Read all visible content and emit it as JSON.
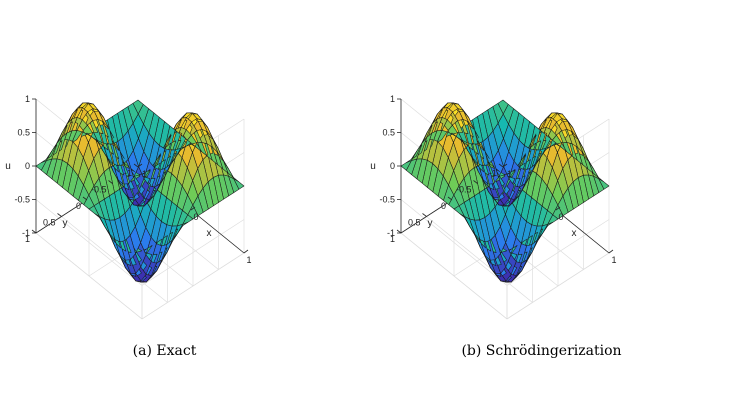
{
  "chart_data": [
    {
      "type": "surface",
      "caption": "(a) Exact",
      "xlabel": "x",
      "ylabel": "y",
      "zlabel": "u",
      "xlim": [
        -1,
        1
      ],
      "ylim": [
        -1,
        1
      ],
      "zlim": [
        -1,
        1
      ],
      "xticks": [
        "-1",
        "0",
        "1"
      ],
      "yticks": [
        "-1",
        "-0.5",
        "0",
        "0.5",
        "1"
      ],
      "zticks": [
        "-1",
        "-0.5",
        "0",
        "0.5",
        "1"
      ],
      "grid": true,
      "colormap": [
        "#3e26a8",
        "#2a80ef",
        "#16b8b0",
        "#6fcc57",
        "#e6b92f",
        "#fde725"
      ],
      "surface": {
        "function": "u(x,y) = -sin(pi*x)*sin(pi*y)",
        "x": [
          -1,
          -0.9,
          -0.8,
          -0.7,
          -0.6,
          -0.5,
          -0.4,
          -0.3,
          -0.2,
          -0.1,
          0,
          0.1,
          0.2,
          0.3,
          0.4,
          0.5,
          0.6,
          0.7,
          0.8,
          0.9,
          1
        ],
        "y": [
          -1,
          -0.9,
          -0.8,
          -0.7,
          -0.6,
          -0.5,
          -0.4,
          -0.3,
          -0.2,
          -0.1,
          0,
          0.1,
          0.2,
          0.3,
          0.4,
          0.5,
          0.6,
          0.7,
          0.8,
          0.9,
          1
        ],
        "max": 1,
        "min": -1,
        "peaks": [
          [
            -0.5,
            0.5,
            1
          ],
          [
            0.5,
            -0.5,
            1
          ]
        ],
        "troughs": [
          [
            -0.5,
            -0.5,
            -1
          ],
          [
            0.5,
            0.5,
            -1
          ]
        ]
      }
    },
    {
      "type": "surface",
      "caption": "(b) Schrödingerization",
      "xlabel": "x",
      "ylabel": "y",
      "zlabel": "u",
      "xlim": [
        -1,
        1
      ],
      "ylim": [
        -1,
        1
      ],
      "zlim": [
        -1,
        1
      ],
      "xticks": [
        "-1",
        "0",
        "1"
      ],
      "yticks": [
        "-1",
        "-0.5",
        "0",
        "0.5",
        "1"
      ],
      "zticks": [
        "-1",
        "-0.5",
        "0",
        "0.5",
        "1"
      ],
      "grid": true,
      "colormap": [
        "#3e26a8",
        "#2a80ef",
        "#16b8b0",
        "#6fcc57",
        "#e6b92f",
        "#fde725"
      ],
      "surface": {
        "function": "u(x,y) = -sin(pi*x)*sin(pi*y)",
        "x": [
          -1,
          -0.9,
          -0.8,
          -0.7,
          -0.6,
          -0.5,
          -0.4,
          -0.3,
          -0.2,
          -0.1,
          0,
          0.1,
          0.2,
          0.3,
          0.4,
          0.5,
          0.6,
          0.7,
          0.8,
          0.9,
          1
        ],
        "y": [
          -1,
          -0.9,
          -0.8,
          -0.7,
          -0.6,
          -0.5,
          -0.4,
          -0.3,
          -0.2,
          -0.1,
          0,
          0.1,
          0.2,
          0.3,
          0.4,
          0.5,
          0.6,
          0.7,
          0.8,
          0.9,
          1
        ],
        "max": 1,
        "min": -1,
        "peaks": [
          [
            -0.5,
            0.5,
            1
          ],
          [
            0.5,
            -0.5,
            1
          ]
        ],
        "troughs": [
          [
            -0.5,
            -0.5,
            -1
          ],
          [
            0.5,
            0.5,
            -1
          ]
        ]
      }
    }
  ]
}
